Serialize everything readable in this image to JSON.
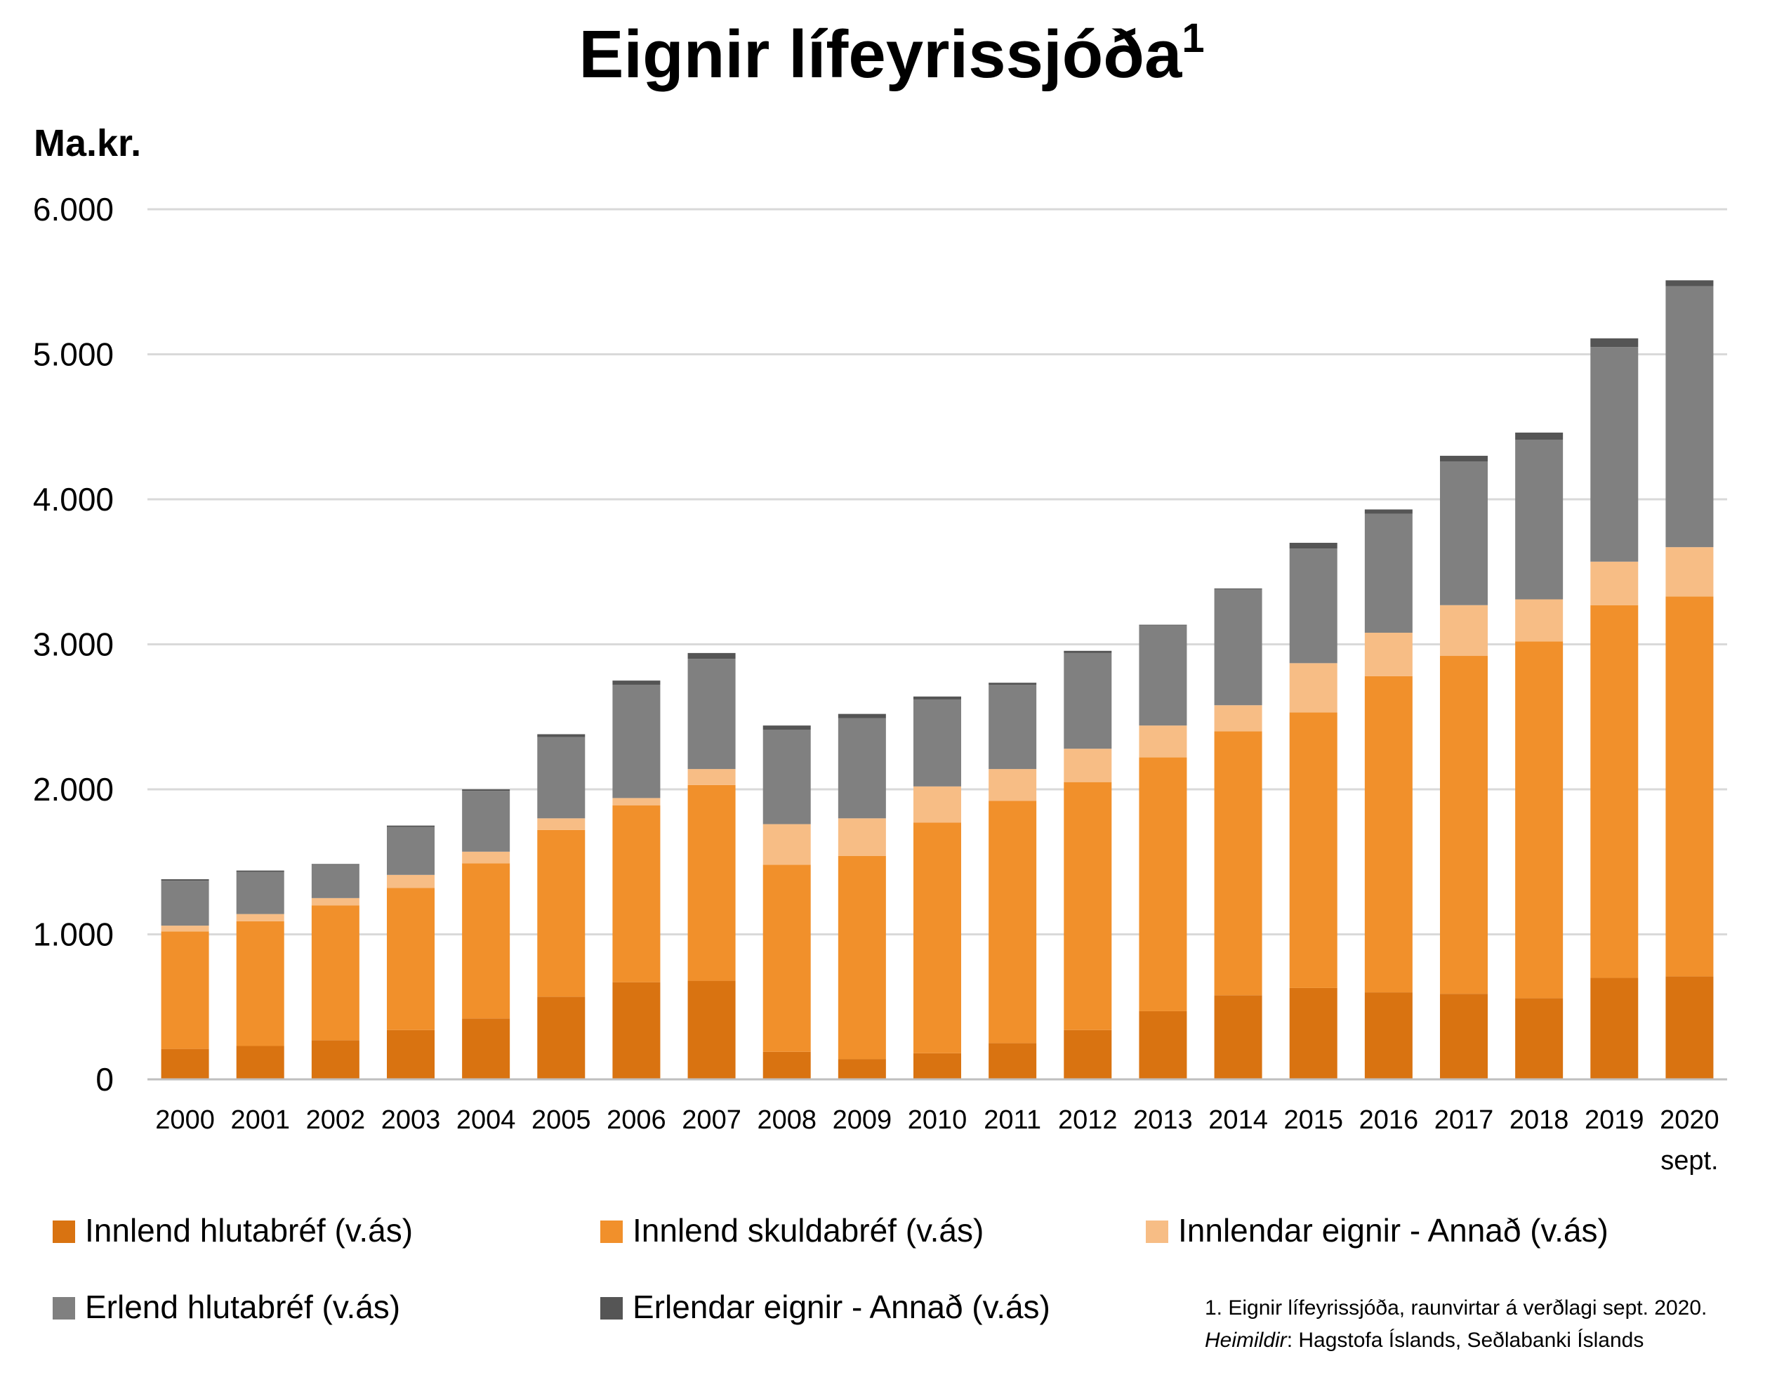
{
  "chart_data": {
    "type": "bar",
    "stacked": true,
    "title": "Eignir lífeyrissjóða",
    "title_superscript": "1",
    "ylabel": "Ma.kr.",
    "ylim": [
      0,
      6000
    ],
    "yticks": [
      0,
      1000,
      2000,
      3000,
      4000,
      5000,
      6000
    ],
    "ytick_labels": [
      "0",
      "1.000",
      "2.000",
      "3.000",
      "4.000",
      "5.000",
      "6.000"
    ],
    "grid": true,
    "legend_position": "bottom",
    "categories": [
      "2000",
      "2001",
      "2002",
      "2003",
      "2004",
      "2005",
      "2006",
      "2007",
      "2008",
      "2009",
      "2010",
      "2011",
      "2012",
      "2013",
      "2014",
      "2015",
      "2016",
      "2017",
      "2018",
      "2019",
      "2020"
    ],
    "category_sublabels": {
      "2020": "sept."
    },
    "series": [
      {
        "name": "Innlend hlutabréf (v.ás)",
        "color": "#d97311",
        "values": [
          210,
          230,
          270,
          340,
          420,
          570,
          670,
          680,
          190,
          140,
          180,
          250,
          340,
          470,
          580,
          630,
          600,
          590,
          560,
          700,
          710
        ]
      },
      {
        "name": "Innlend skuldabréf (v.ás)",
        "color": "#f1902b",
        "values": [
          810,
          860,
          930,
          980,
          1070,
          1150,
          1220,
          1350,
          1290,
          1400,
          1590,
          1670,
          1710,
          1750,
          1820,
          1900,
          2180,
          2330,
          2460,
          2570,
          2620
        ]
      },
      {
        "name": "Innlendar eignir - Annað (v.ás)",
        "color": "#f7bd85",
        "values": [
          40,
          50,
          50,
          90,
          80,
          80,
          50,
          110,
          280,
          260,
          250,
          220,
          230,
          220,
          180,
          340,
          300,
          350,
          290,
          300,
          340
        ]
      },
      {
        "name": "Erlend hlutabréf (v.ás)",
        "color": "#808080",
        "values": [
          310,
          290,
          230,
          330,
          420,
          560,
          780,
          760,
          650,
          690,
          600,
          580,
          660,
          690,
          800,
          790,
          820,
          990,
          1100,
          1480,
          1800
        ]
      },
      {
        "name": "Erlendar eignir - Annað (v.ás)",
        "color": "#555555",
        "values": [
          10,
          10,
          5,
          10,
          10,
          20,
          30,
          40,
          30,
          30,
          20,
          15,
          15,
          5,
          5,
          40,
          30,
          40,
          50,
          60,
          40
        ]
      }
    ]
  },
  "footnote": {
    "line1": "1. Eignir lífeyrissjóða, raunvirtar á verðlagi sept. 2020.",
    "line2_italic": "Heimildir",
    "line2_rest": ": Hagstofa Íslands, Seðlabanki Íslands"
  }
}
